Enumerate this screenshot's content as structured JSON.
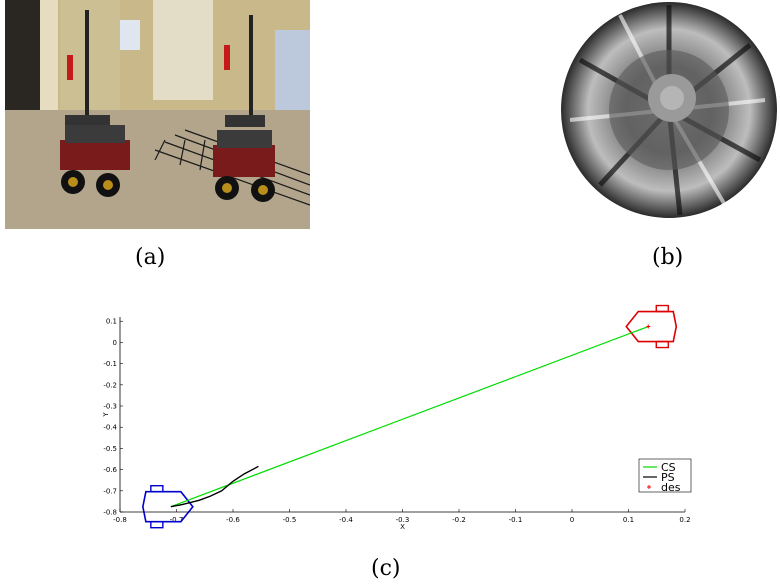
{
  "captions": {
    "a": "(a)",
    "b": "(b)",
    "c": "(c)"
  },
  "chart_data": {
    "type": "line",
    "xlabel": "X",
    "ylabel": "Y",
    "xlim": [
      -0.8,
      0.2
    ],
    "ylim": [
      -0.8,
      0.12
    ],
    "x_ticks": [
      -0.8,
      -0.7,
      -0.6,
      -0.5,
      -0.4,
      -0.3,
      -0.2,
      -0.1,
      0,
      0.1,
      0.2
    ],
    "x_tick_labels": [
      "-0.8",
      "-0.7",
      "-0.6",
      "-0.5",
      "-0.4",
      "-0.3",
      "-0.2",
      "-0.1",
      "0",
      "0.1",
      "0.2"
    ],
    "y_ticks": [
      0.1,
      0,
      -0.1,
      -0.2,
      -0.3,
      -0.4,
      -0.5,
      -0.6,
      -0.7,
      -0.8
    ],
    "y_tick_labels": [
      "0.1",
      "0",
      "-0.1",
      "-0.2",
      "-0.3",
      "-0.4",
      "-0.5",
      "-0.6",
      "-0.7",
      "-0.8"
    ],
    "legend_position": "bottom-right",
    "series": [
      {
        "name": "CS",
        "color": "#00dd00",
        "x": [
          -0.71,
          0.135
        ],
        "y": [
          -0.775,
          0.075
        ]
      },
      {
        "name": "PS",
        "color": "#000000",
        "x": [
          -0.71,
          -0.69,
          -0.66,
          -0.64,
          -0.62,
          -0.6,
          -0.58,
          -0.555
        ],
        "y": [
          -0.775,
          -0.765,
          -0.745,
          -0.725,
          -0.7,
          -0.655,
          -0.62,
          -0.585
        ]
      },
      {
        "name": "des",
        "color": "#ff0000",
        "marker": "+",
        "x": [
          0.135
        ],
        "y": [
          0.075
        ]
      }
    ],
    "robots": [
      {
        "color": "#0000cc",
        "x": -0.71,
        "y": -0.775,
        "heading_deg": 0
      },
      {
        "color": "#dd0000",
        "x": 0.135,
        "y": 0.075,
        "heading_deg": 180
      }
    ]
  }
}
